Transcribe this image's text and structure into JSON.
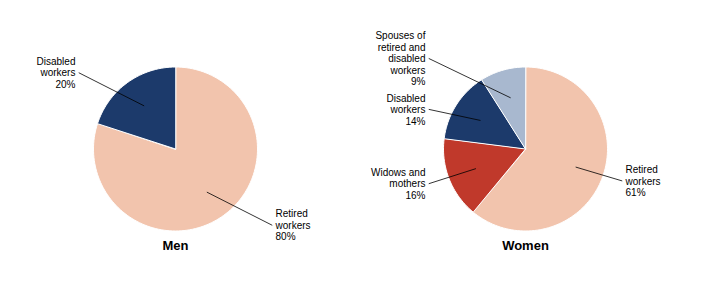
{
  "chart_data": [
    {
      "type": "pie",
      "title": "Men",
      "categories": [
        "Retired\nworkers",
        "Disabled\nworkers"
      ],
      "values": [
        80,
        20
      ],
      "value_labels": [
        "80%",
        "20%"
      ],
      "colors": [
        "#F2C4AD",
        "#1C3A6B"
      ],
      "data_labels": true
    },
    {
      "type": "pie",
      "title": "Women",
      "categories": [
        "Retired\nworkers",
        "Widows and\nmothers",
        "Disabled\nworkers",
        "Spouses of\nretired and\ndisabled\nworkers"
      ],
      "values": [
        61,
        16,
        14,
        9
      ],
      "value_labels": [
        "61%",
        "16%",
        "14%",
        "9%"
      ],
      "colors": [
        "#F2C4AD",
        "#C0392B",
        "#1C3A6B",
        "#A8B8CF"
      ],
      "data_labels": true
    }
  ]
}
